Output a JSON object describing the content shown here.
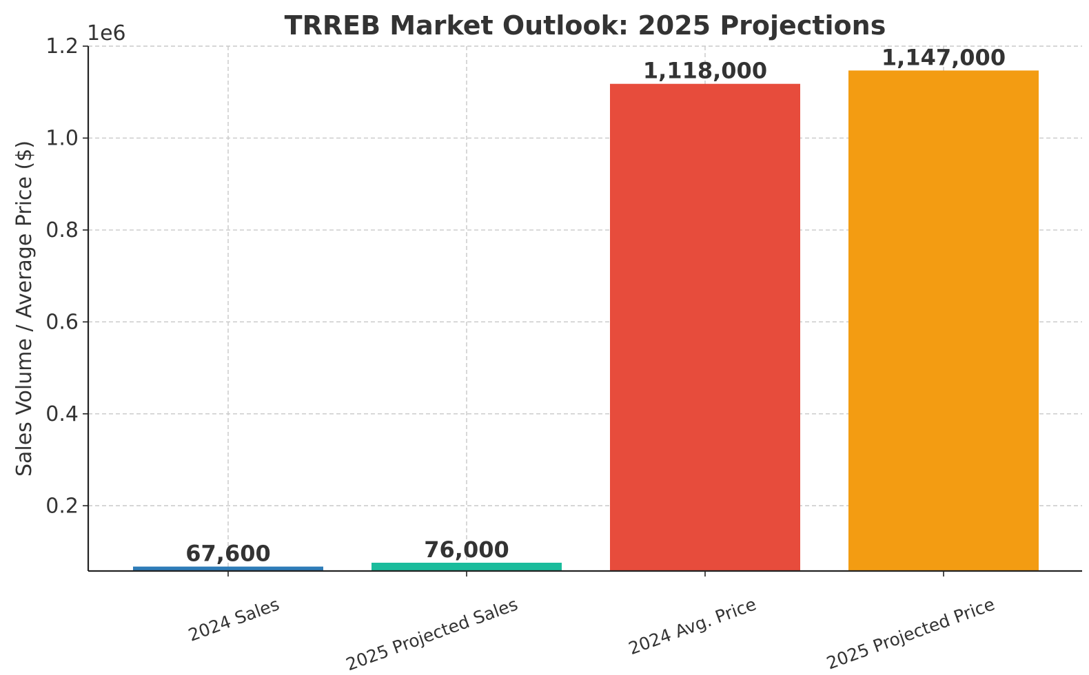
{
  "chart_data": {
    "type": "bar",
    "title": "TRREB Market Outlook: 2025 Projections",
    "xlabel": "",
    "ylabel": "Sales Volume / Average Price ($)",
    "categories": [
      "2024 Sales",
      "2025 Projected Sales",
      "2024 Avg. Price",
      "2025 Projected Price"
    ],
    "values": [
      67600,
      76000,
      1118000,
      1147000
    ],
    "data_labels": [
      "67,600",
      "76,000",
      "1,118,000",
      "1,147,000"
    ],
    "colors": [
      "#2e7cb8",
      "#1abc9c",
      "#e74c3c",
      "#f39c12"
    ],
    "ylim": [
      58000,
      1200000
    ],
    "yticks": [
      200000,
      400000,
      600000,
      800000,
      1000000,
      1200000
    ],
    "ytick_labels": [
      "0.2",
      "0.4",
      "0.6",
      "0.8",
      "1.0",
      "1.2"
    ],
    "y_offset_text": "1e6",
    "grid": true
  }
}
